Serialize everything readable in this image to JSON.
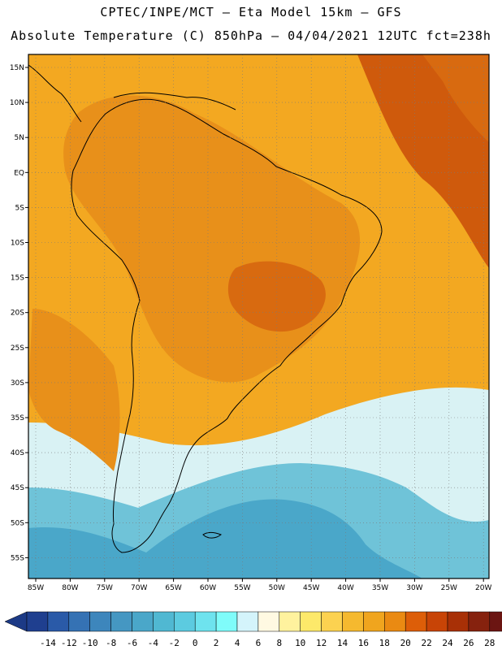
{
  "title_line1": "CPTEC/INPE/MCT –  Eta Model 15km – GFS",
  "title_line2": "Absolute Temperature (C) 850hPa – 04/04/2021 12UTC fct=238h",
  "lat_labels": [
    "15N",
    "10N",
    "5N",
    "EQ",
    "5S",
    "10S",
    "15S",
    "20S",
    "25S",
    "30S",
    "35S",
    "40S",
    "45S",
    "50S",
    "55S"
  ],
  "lon_labels": [
    "85W",
    "80W",
    "75W",
    "70W",
    "65W",
    "60W",
    "55W",
    "50W",
    "45W",
    "40W",
    "35W",
    "30W",
    "25W",
    "20W"
  ],
  "colorbar": {
    "ticks": [
      "-14",
      "-12",
      "-10",
      "-8",
      "-6",
      "-4",
      "-2",
      "0",
      "2",
      "4",
      "6",
      "8",
      "10",
      "12",
      "14",
      "16",
      "18",
      "20",
      "22",
      "24",
      "26",
      "28"
    ],
    "colors": [
      "#1f3f8f",
      "#2a5aa8",
      "#3572b4",
      "#3d86bc",
      "#4597c2",
      "#4aa7c9",
      "#50b8d2",
      "#5ccbe0",
      "#6ee3ee",
      "#7ffcfa",
      "#d4f4fb",
      "#fff9e2",
      "#fff29e",
      "#fde96a",
      "#fcd250",
      "#f5b92f",
      "#f0a51e",
      "#ea8a12",
      "#dd5e08",
      "#c84406",
      "#a83006",
      "#86220e",
      "#6b1512"
    ],
    "under_color": "#1c3a86",
    "over_color": "#6a1212"
  },
  "field_colors": {
    "ocean_cold": "#4aa7c9",
    "ocean_cool": "#6fc3d8",
    "ocean_pale": "#d9f2f4",
    "ocean_warm": "#f5b92f",
    "tropics": "#f3a821",
    "land_warm": "#e8901a",
    "hot_spot": "#d86a10",
    "far_ne": "#cf5a0c"
  }
}
